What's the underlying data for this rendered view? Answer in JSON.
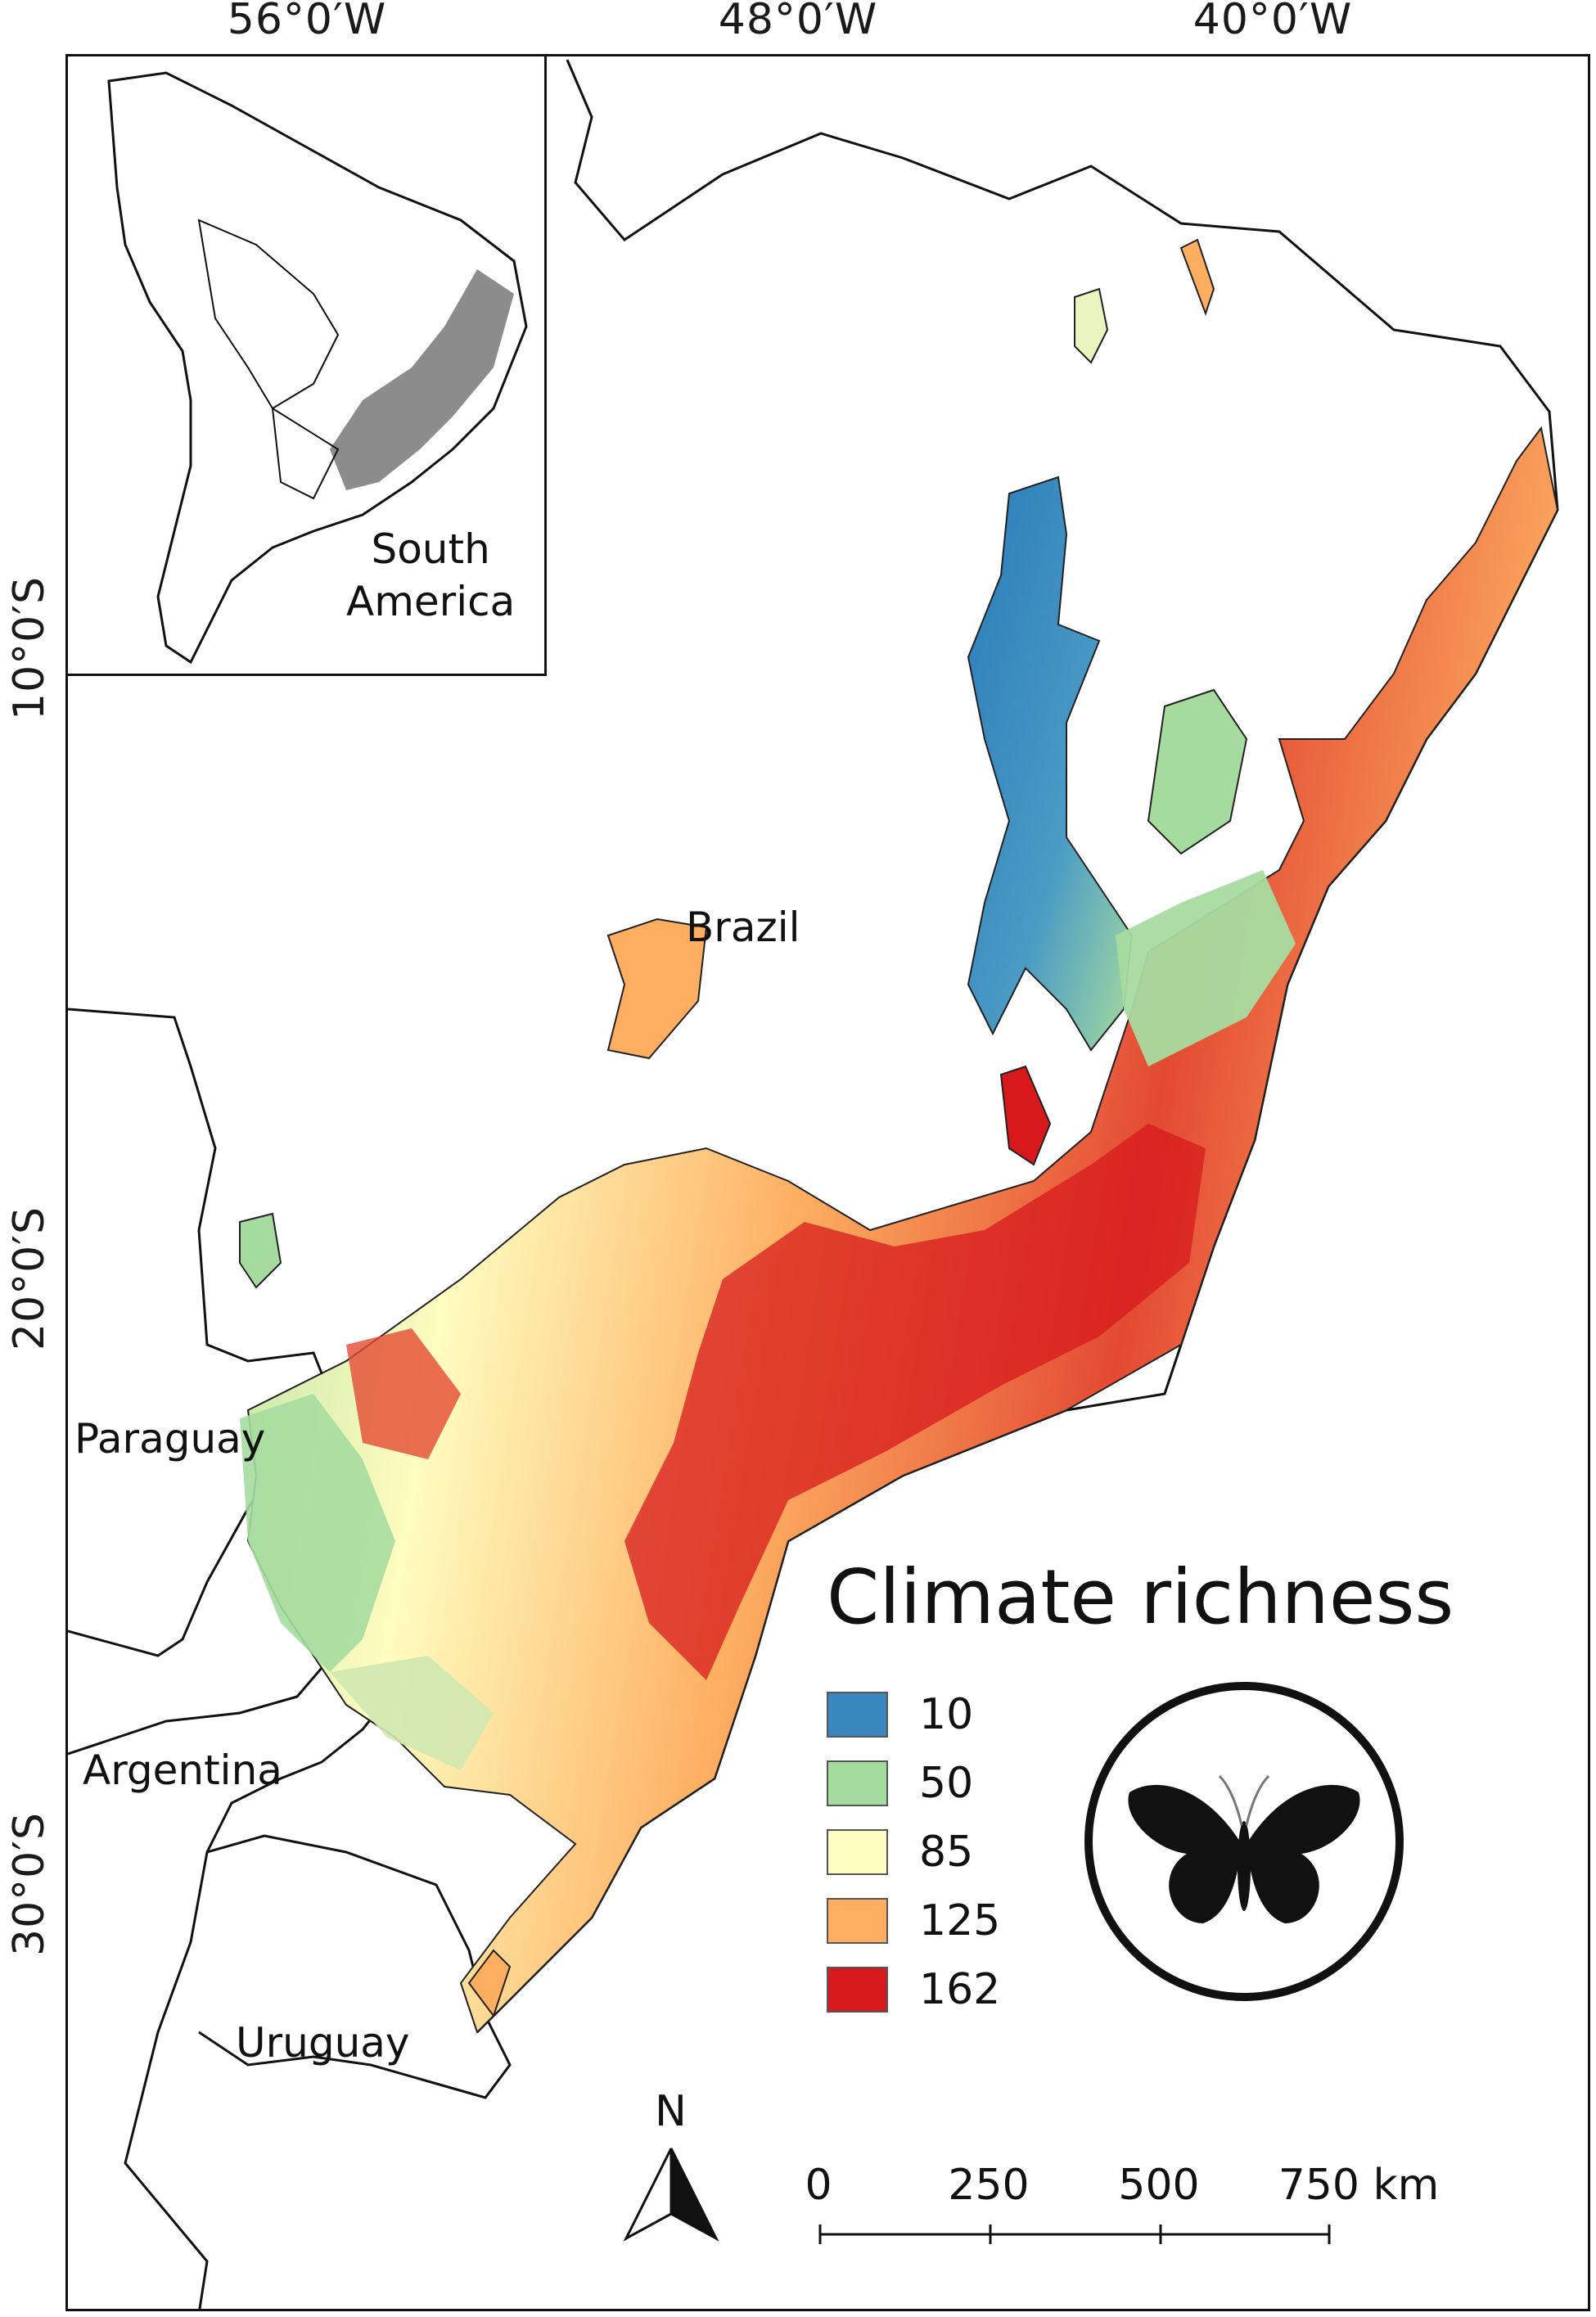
{
  "graticule": {
    "longitude_labels": [
      "56°0′W",
      "48°0′W",
      "40°0′W"
    ],
    "latitude_labels": [
      "10°0′S",
      "20°0′S",
      "30°0′S"
    ]
  },
  "countries": {
    "brazil": "Brazil",
    "paraguay": "Paraguay",
    "argentina": "Argentina",
    "uruguay": "Uruguay"
  },
  "inset": {
    "label_line1": "South",
    "label_line2": "America",
    "highlight_color": "#8c8c8c"
  },
  "legend": {
    "title": "Climate richness",
    "items": [
      {
        "value": "10",
        "color": "#3a87c0"
      },
      {
        "value": "50",
        "color": "#a6dba0"
      },
      {
        "value": "85",
        "color": "#fffcbf"
      },
      {
        "value": "125",
        "color": "#fdae61"
      },
      {
        "value": "162",
        "color": "#d7191c"
      }
    ]
  },
  "scale_bar": {
    "ticks": [
      "0",
      "250",
      "500",
      "750 km"
    ]
  },
  "north_arrow": {
    "label": "N"
  },
  "symbol": {
    "icon": "butterfly-icon"
  }
}
